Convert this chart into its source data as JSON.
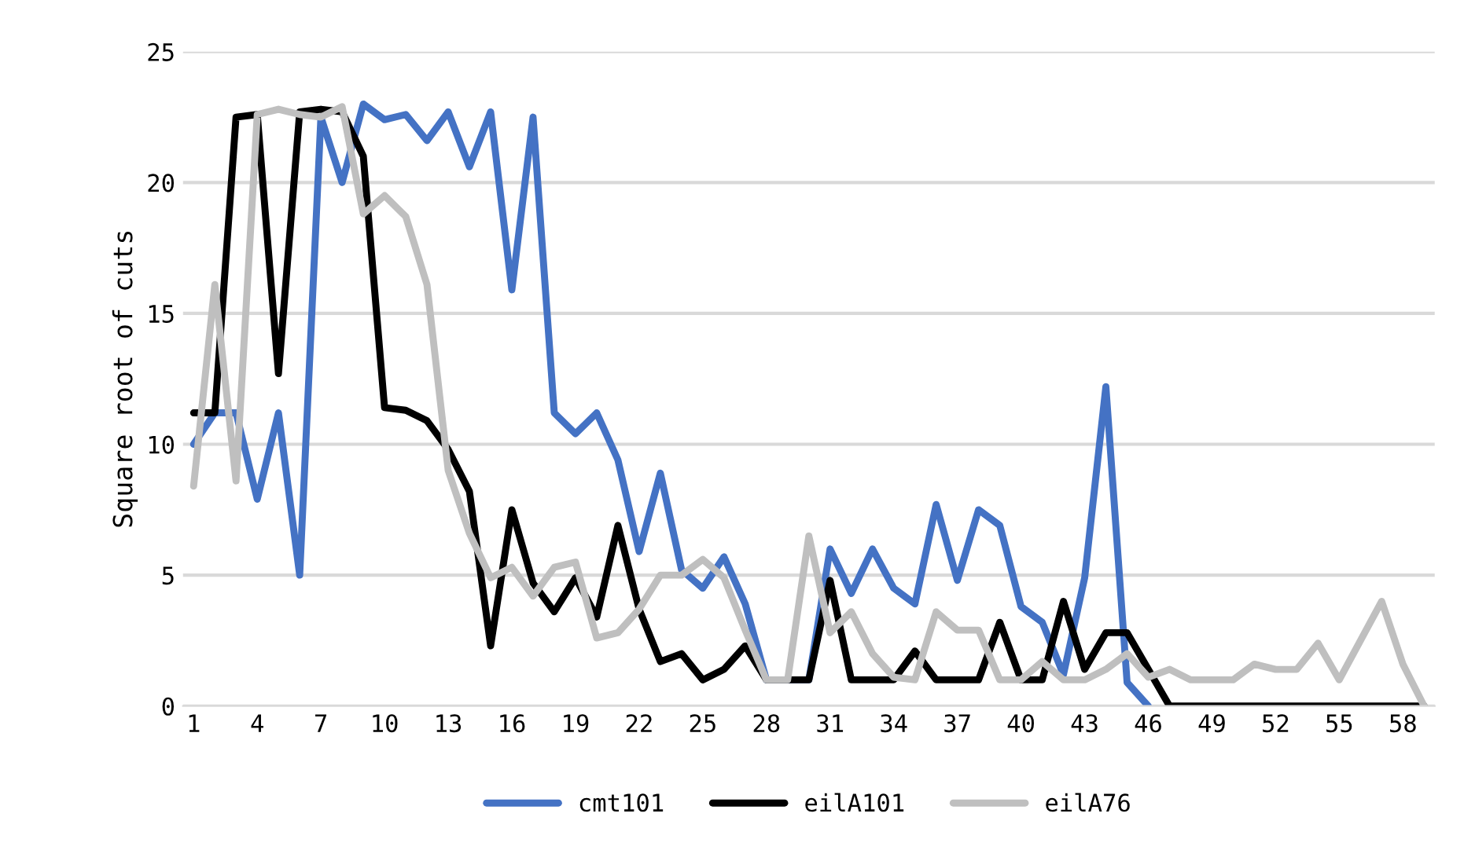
{
  "chart_data": {
    "type": "line",
    "ylabel": "Square root of cuts",
    "categories": [
      "1",
      null,
      null,
      "4",
      null,
      null,
      "7",
      null,
      null,
      "10",
      null,
      null,
      "13",
      null,
      null,
      "16",
      null,
      null,
      "19",
      null,
      null,
      "22",
      null,
      null,
      "25",
      null,
      null,
      "28",
      null,
      null,
      "31",
      null,
      null,
      "34",
      null,
      null,
      "37",
      null,
      null,
      "40",
      null,
      null,
      "43",
      null,
      null,
      "46",
      null,
      null,
      "49",
      null,
      null,
      "52",
      null,
      null,
      "55",
      null,
      null,
      "58",
      null
    ],
    "series": [
      {
        "name": "cmt101",
        "color": "#4472c4",
        "values": [
          10,
          11.2,
          11.2,
          7.9,
          11.2,
          5,
          22.5,
          20,
          23,
          22.4,
          22.6,
          21.6,
          22.7,
          20.6,
          22.7,
          15.9,
          22.5,
          11.2,
          10.4,
          11.2,
          9.4,
          5.9,
          8.9,
          5.2,
          4.5,
          5.7,
          3.9,
          1,
          1,
          1,
          6,
          4.3,
          6,
          4.5,
          3.9,
          7.7,
          4.8,
          7.5,
          6.9,
          3.8,
          3.2,
          1.2,
          4.9,
          12.2,
          0.9,
          0,
          null,
          null,
          null,
          null,
          null,
          null,
          null,
          null,
          null,
          null,
          null,
          null,
          null
        ]
      },
      {
        "name": "eilA101",
        "color": "#000000",
        "values": [
          11.2,
          11.2,
          22.5,
          22.6,
          12.7,
          22.7,
          22.8,
          22.7,
          21,
          11.4,
          11.3,
          10.9,
          9.8,
          8.2,
          2.3,
          7.5,
          4.7,
          3.6,
          4.9,
          3.4,
          6.9,
          3.7,
          1.7,
          2,
          1,
          1.4,
          2.3,
          1,
          1,
          1,
          4.8,
          1,
          1,
          1,
          2.1,
          1,
          1,
          1,
          3.2,
          1,
          1,
          4,
          1.4,
          2.8,
          2.8,
          1.4,
          0,
          0,
          0,
          0,
          0,
          0,
          0,
          0,
          0,
          0,
          0,
          0,
          0
        ]
      },
      {
        "name": "eilA76",
        "color": "#bfbfbf",
        "values": [
          8.4,
          16.1,
          8.6,
          22.6,
          22.8,
          22.6,
          22.5,
          22.9,
          18.8,
          19.5,
          18.7,
          16.1,
          9,
          6.6,
          4.9,
          5.3,
          4.2,
          5.3,
          5.5,
          2.6,
          2.8,
          3.7,
          5,
          5,
          5.6,
          4.9,
          2.9,
          1,
          1,
          6.5,
          2.8,
          3.6,
          2,
          1.1,
          1,
          3.6,
          2.9,
          2.9,
          1,
          1,
          1.7,
          1,
          1,
          1.4,
          2,
          1.1,
          1.4,
          1,
          1,
          1,
          1.6,
          1.4,
          1.4,
          2.4,
          1,
          2.5,
          4,
          1.6,
          0
        ]
      }
    ],
    "ylim": [
      0,
      25
    ],
    "yticks": [
      0,
      5,
      10,
      15,
      20,
      25
    ],
    "grid": "y",
    "legend": "bottom",
    "marker": "none",
    "line_style": "solid"
  }
}
